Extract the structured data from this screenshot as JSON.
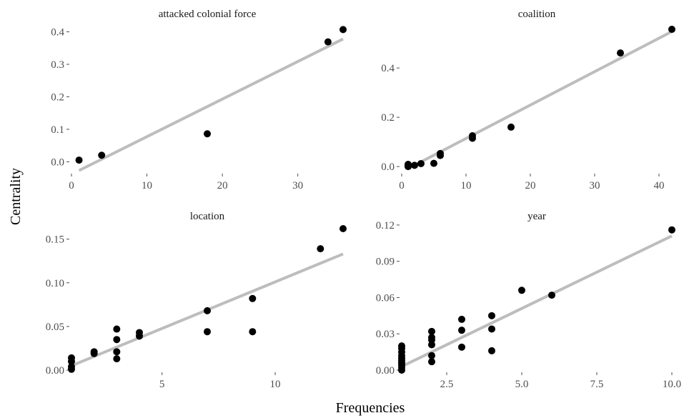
{
  "xlabel": "Frequencies",
  "ylabel": "Centrality",
  "colors": {
    "point": "#000000",
    "fit_line": "#bdbdbd",
    "tick_text": "#4d4d4d",
    "background": "#ffffff"
  },
  "chart_data": [
    {
      "type": "scatter",
      "title": "attacked colonial force",
      "xlim": [
        0,
        36
      ],
      "ylim": [
        -0.03,
        0.41
      ],
      "x_ticks": [
        0,
        10,
        20,
        30
      ],
      "x_tick_labels": [
        "0",
        "10",
        "20",
        "30"
      ],
      "y_ticks": [
        0,
        0.1,
        0.2,
        0.3,
        0.4
      ],
      "y_tick_labels": [
        "0.0",
        "0.1",
        "0.2",
        "0.3",
        "0.4"
      ],
      "points": {
        "x": [
          1,
          4,
          18,
          34,
          36
        ],
        "y": [
          0.005,
          0.02,
          0.086,
          0.369,
          0.407
        ]
      },
      "fit": {
        "x": [
          1,
          36
        ],
        "y": [
          -0.027,
          0.378
        ]
      },
      "grid": false,
      "legend": "none"
    },
    {
      "type": "scatter",
      "title": "coalition",
      "xlim": [
        0,
        42
      ],
      "ylim": [
        -0.02,
        0.56
      ],
      "x_ticks": [
        0,
        10,
        20,
        30,
        40
      ],
      "x_tick_labels": [
        "0",
        "10",
        "20",
        "30",
        "40"
      ],
      "y_ticks": [
        0,
        0.2,
        0.4
      ],
      "y_tick_labels": [
        "0.0",
        "0.2",
        "0.4"
      ],
      "points": {
        "x": [
          1,
          1,
          1,
          1,
          2,
          3,
          5,
          6,
          6,
          11,
          11,
          17,
          34,
          42
        ],
        "y": [
          0.0,
          0.003,
          0.006,
          0.009,
          0.005,
          0.012,
          0.013,
          0.045,
          0.053,
          0.115,
          0.125,
          0.16,
          0.461,
          0.557
        ]
      },
      "fit": {
        "x": [
          1,
          42
        ],
        "y": [
          -0.008,
          0.548
        ]
      },
      "grid": false,
      "legend": "none"
    },
    {
      "type": "scatter",
      "title": "location",
      "xlim": [
        1,
        13
      ],
      "ylim": [
        0,
        0.162
      ],
      "x_ticks": [
        5,
        10
      ],
      "x_tick_labels": [
        "5",
        "10"
      ],
      "y_ticks": [
        0,
        0.05,
        0.1,
        0.15
      ],
      "y_tick_labels": [
        "0.00",
        "0.05",
        "0.10",
        "0.15"
      ],
      "points": {
        "x": [
          1,
          1,
          1,
          1,
          2,
          2,
          3,
          3,
          3,
          3,
          4,
          4,
          7,
          7,
          9,
          9,
          12,
          13
        ],
        "y": [
          0.001,
          0.004,
          0.01,
          0.014,
          0.019,
          0.021,
          0.013,
          0.021,
          0.035,
          0.047,
          0.039,
          0.043,
          0.044,
          0.068,
          0.044,
          0.082,
          0.139,
          0.162
        ]
      },
      "fit": {
        "x": [
          1,
          13
        ],
        "y": [
          0.005,
          0.133
        ]
      },
      "grid": false,
      "legend": "none"
    },
    {
      "type": "scatter",
      "title": "year",
      "xlim": [
        1,
        10
      ],
      "ylim": [
        0,
        0.117
      ],
      "x_ticks": [
        2.5,
        5.0,
        7.5,
        10.0
      ],
      "x_tick_labels": [
        "2.5",
        "5.0",
        "7.5",
        "10.0"
      ],
      "y_ticks": [
        0,
        0.03,
        0.06,
        0.09,
        0.12
      ],
      "y_tick_labels": [
        "0.00",
        "0.03",
        "0.06",
        "0.09",
        "0.12"
      ],
      "points": {
        "x": [
          1,
          1,
          1,
          1,
          1,
          1,
          1,
          1,
          1,
          1,
          2,
          2,
          2,
          2,
          2,
          2,
          3,
          3,
          3,
          4,
          4,
          4,
          5,
          6,
          10
        ],
        "y": [
          0.0,
          0.002,
          0.004,
          0.006,
          0.008,
          0.01,
          0.012,
          0.015,
          0.018,
          0.02,
          0.007,
          0.012,
          0.021,
          0.025,
          0.027,
          0.032,
          0.019,
          0.033,
          0.042,
          0.016,
          0.034,
          0.045,
          0.066,
          0.062,
          0.116
        ]
      },
      "fit": {
        "x": [
          1,
          10
        ],
        "y": [
          0.003,
          0.111
        ]
      },
      "grid": false,
      "legend": "none"
    }
  ]
}
